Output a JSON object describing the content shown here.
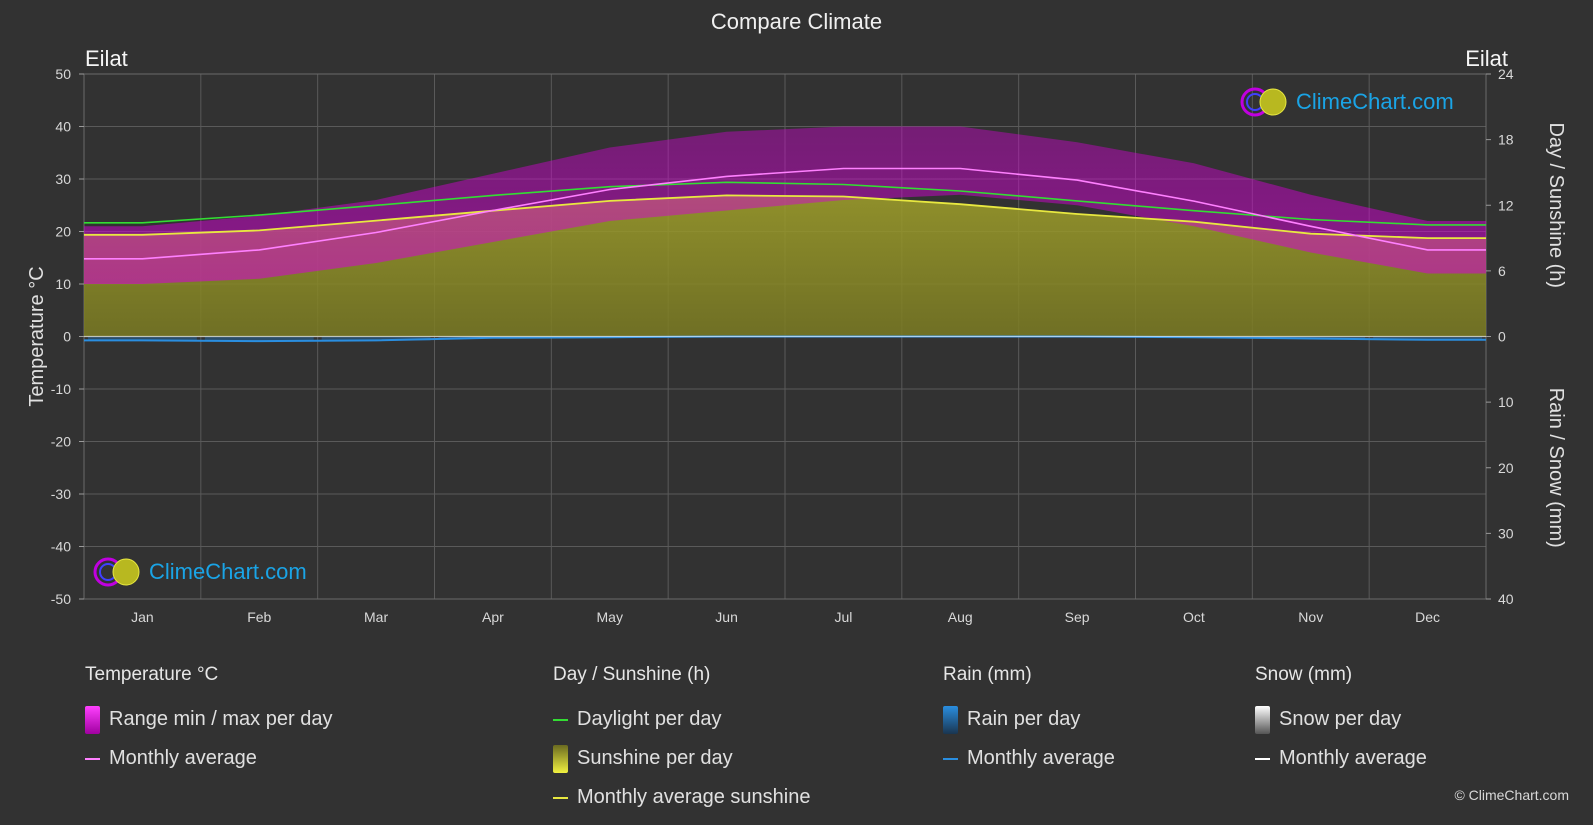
{
  "title": "Compare Climate",
  "city_left": "Eilat",
  "city_right": "Eilat",
  "brand": "ClimeChart.com",
  "copyright": "© ClimeChart.com",
  "colors": {
    "background": "#323232",
    "temp_range": "#d400d4",
    "temp_avg": "#ff80ff",
    "daylight": "#33dd33",
    "sunshine": "#9a9a2a",
    "sunshine_avg": "#e8e840",
    "rain": "#1f7fd0",
    "rain_avg": "#2a8ee0",
    "snow": "#ffffff",
    "snow_avg": "#ffffff",
    "brand": "#1aa4e6"
  },
  "legend": {
    "temperature": {
      "heading": "Temperature °C",
      "range": "Range min / max per day",
      "avg": "Monthly average"
    },
    "sunshine": {
      "heading": "Day / Sunshine (h)",
      "daylight": "Daylight per day",
      "sunshine": "Sunshine per day",
      "avg": "Monthly average sunshine"
    },
    "rain": {
      "heading": "Rain (mm)",
      "per_day": "Rain per day",
      "avg": "Monthly average"
    },
    "snow": {
      "heading": "Snow (mm)",
      "per_day": "Snow per day",
      "avg": "Monthly average"
    }
  },
  "chart_data": {
    "type": "area",
    "categories": [
      "Jan",
      "Feb",
      "Mar",
      "Apr",
      "May",
      "Jun",
      "Jul",
      "Aug",
      "Sep",
      "Oct",
      "Nov",
      "Dec"
    ],
    "y_left": {
      "label": "Temperature °C",
      "range": [
        -50,
        50
      ],
      "ticks": [
        50,
        40,
        30,
        20,
        10,
        0,
        -10,
        -20,
        -30,
        -40,
        -50
      ]
    },
    "y_right_top": {
      "label": "Day / Sunshine (h)",
      "range": [
        0,
        24
      ],
      "ticks": [
        24,
        18,
        12,
        6,
        0
      ]
    },
    "y_right_bottom": {
      "label": "Rain / Snow (mm)",
      "range": [
        0,
        40
      ],
      "ticks": [
        10,
        20,
        30,
        40
      ]
    },
    "grid": true,
    "series": [
      {
        "name": "Range min / max per day",
        "unit": "°C",
        "min": [
          10,
          11,
          14,
          18,
          22,
          24,
          26,
          27,
          25,
          21,
          16,
          12
        ],
        "max": [
          21,
          23,
          26,
          31,
          36,
          39,
          40,
          40,
          37,
          33,
          27,
          22
        ]
      },
      {
        "name": "Monthly average",
        "unit": "°C",
        "values": [
          14.8,
          16.5,
          19.8,
          24.0,
          28.0,
          30.5,
          32.0,
          32.0,
          29.8,
          25.8,
          21.0,
          16.5
        ]
      },
      {
        "name": "Daylight per day",
        "unit": "h",
        "values": [
          10.4,
          11.1,
          12.0,
          12.9,
          13.7,
          14.1,
          13.9,
          13.3,
          12.4,
          11.5,
          10.7,
          10.2
        ]
      },
      {
        "name": "Sunshine per day",
        "unit": "h",
        "values": [
          9.3,
          9.7,
          10.6,
          11.5,
          12.4,
          12.9,
          12.8,
          12.1,
          11.2,
          10.5,
          9.4,
          9.0
        ]
      },
      {
        "name": "Monthly average sunshine",
        "unit": "h",
        "values": [
          9.3,
          9.7,
          10.6,
          11.5,
          12.4,
          12.9,
          12.8,
          12.1,
          11.2,
          10.5,
          9.4,
          9.0
        ]
      },
      {
        "name": "Rain per day",
        "unit": "mm",
        "values": [
          0.6,
          0.7,
          0.6,
          0.2,
          0.1,
          0.0,
          0.0,
          0.0,
          0.0,
          0.1,
          0.3,
          0.5
        ]
      },
      {
        "name": "Snow per day",
        "unit": "mm",
        "values": [
          0,
          0,
          0,
          0,
          0,
          0,
          0,
          0,
          0,
          0,
          0,
          0
        ]
      }
    ]
  }
}
